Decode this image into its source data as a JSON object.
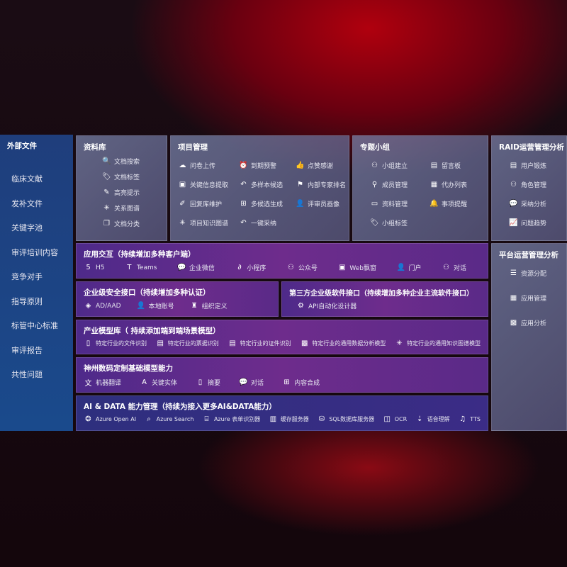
{
  "sidebar": {
    "title": "外部文件",
    "items": [
      "临床文献",
      "发补文件",
      "关键字池",
      "审评培训内容",
      "竞争对手",
      "指导原则",
      "标管中心标准",
      "审评报告",
      "共性问题"
    ]
  },
  "ziliaoku": {
    "title": "资料库",
    "items": [
      {
        "icon": "doc-search",
        "label": "文档搜索"
      },
      {
        "icon": "tag",
        "label": "文档标签"
      },
      {
        "icon": "pen",
        "label": "高亮提示"
      },
      {
        "icon": "graph",
        "label": "关系图谱"
      },
      {
        "icon": "doc-stack",
        "label": "文档分类"
      }
    ]
  },
  "xiangmu": {
    "title": "项目管理",
    "items": [
      {
        "icon": "cloud-upload",
        "label": "问卷上传"
      },
      {
        "icon": "alarm",
        "label": "到期预警"
      },
      {
        "icon": "thumbs-up",
        "label": "点赞感谢"
      },
      {
        "icon": "window",
        "label": "关键信息提取"
      },
      {
        "icon": "reply",
        "label": "多样本候选"
      },
      {
        "icon": "ranking",
        "label": "内部专家排名"
      },
      {
        "icon": "edit",
        "label": "回复库维护"
      },
      {
        "icon": "puzzle",
        "label": "多候选生成"
      },
      {
        "icon": "user",
        "label": "评审员画像"
      },
      {
        "icon": "graph",
        "label": "项目知识图谱"
      },
      {
        "icon": "reply",
        "label": "一键采纳"
      }
    ]
  },
  "zhuanti": {
    "title": "专题小组",
    "items": [
      {
        "icon": "group",
        "label": "小组建立"
      },
      {
        "icon": "bbs",
        "label": "留言板"
      },
      {
        "icon": "user-add",
        "label": "成员管理"
      },
      {
        "icon": "clipboard",
        "label": "代办列表"
      },
      {
        "icon": "folder",
        "label": "资料管理"
      },
      {
        "icon": "bell",
        "label": "事项提醒"
      },
      {
        "icon": "tag",
        "label": "小组标签"
      }
    ]
  },
  "raid": {
    "title": "RAID运营管理分析",
    "items": [
      {
        "icon": "id-card",
        "label": "用户锻炼"
      },
      {
        "icon": "group",
        "label": "角色管理"
      },
      {
        "icon": "qa",
        "label": "采纳分析"
      },
      {
        "icon": "trend",
        "label": "问题趋势"
      }
    ]
  },
  "platform": {
    "title": "平台运营管理分析",
    "items": [
      {
        "icon": "checklist",
        "label": "资源分配"
      },
      {
        "icon": "apps",
        "label": "应用管理"
      },
      {
        "icon": "chart",
        "label": "应用分析"
      }
    ]
  },
  "app": {
    "title": "应用交互（持续增加多种客户端）",
    "items": [
      {
        "icon": "html5",
        "label": "H5"
      },
      {
        "icon": "teams",
        "label": "Teams"
      },
      {
        "icon": "wechat",
        "label": "企业微信"
      },
      {
        "icon": "mini-program",
        "label": "小程序"
      },
      {
        "icon": "group",
        "label": "公众号"
      },
      {
        "icon": "window",
        "label": "Web飘窗"
      },
      {
        "icon": "user",
        "label": "门户"
      },
      {
        "icon": "chat-users",
        "label": "对话"
      }
    ]
  },
  "security": {
    "title": "企业级安全接口（持续增加多种认证）",
    "items": [
      {
        "icon": "diamond",
        "label": "AD/AAD"
      },
      {
        "icon": "user",
        "label": "本地账号"
      },
      {
        "icon": "org",
        "label": "组织定义"
      }
    ]
  },
  "thirdparty": {
    "title": "第三方企业级软件接口（持续增加多种企业主流软件接口）",
    "items": [
      {
        "icon": "gear",
        "label": "API自动化设计器"
      }
    ]
  },
  "industry": {
    "title": "产业模型库（ 持续添加端到端场景模型）",
    "items": [
      {
        "icon": "doc",
        "label": "特定行业的文件识别"
      },
      {
        "icon": "receipt",
        "label": "特定行业的票据识别"
      },
      {
        "icon": "id-card",
        "label": "特定行业的证件识别"
      },
      {
        "icon": "chart",
        "label": "特定行业的通用数据分析模型"
      },
      {
        "icon": "graph",
        "label": "特定行业的通用知识图谱模型"
      }
    ]
  },
  "dc": {
    "title": "神州数码定制基础模型能力",
    "items": [
      {
        "icon": "translate",
        "label": "机器翻译"
      },
      {
        "icon": "shield-a",
        "label": "关键实体"
      },
      {
        "icon": "doc",
        "label": "摘要"
      },
      {
        "icon": "chat",
        "label": "对话"
      },
      {
        "icon": "puzzle",
        "label": "内容合成"
      }
    ]
  },
  "aidata": {
    "title": "AI & DATA 能力管理（持续为接入更多AI&DATA能力）",
    "items": [
      {
        "icon": "openai",
        "label": "Azure Open AI"
      },
      {
        "icon": "search-doc",
        "label": "Azure Search"
      },
      {
        "icon": "form",
        "label": "Azure 表单识别器"
      },
      {
        "icon": "cache",
        "label": "缓存服务器"
      },
      {
        "icon": "database",
        "label": "SQL数据库服务器"
      },
      {
        "icon": "ocr",
        "label": "OCR"
      },
      {
        "icon": "speech",
        "label": "语音理解"
      },
      {
        "icon": "tts",
        "label": "TTS"
      }
    ]
  }
}
